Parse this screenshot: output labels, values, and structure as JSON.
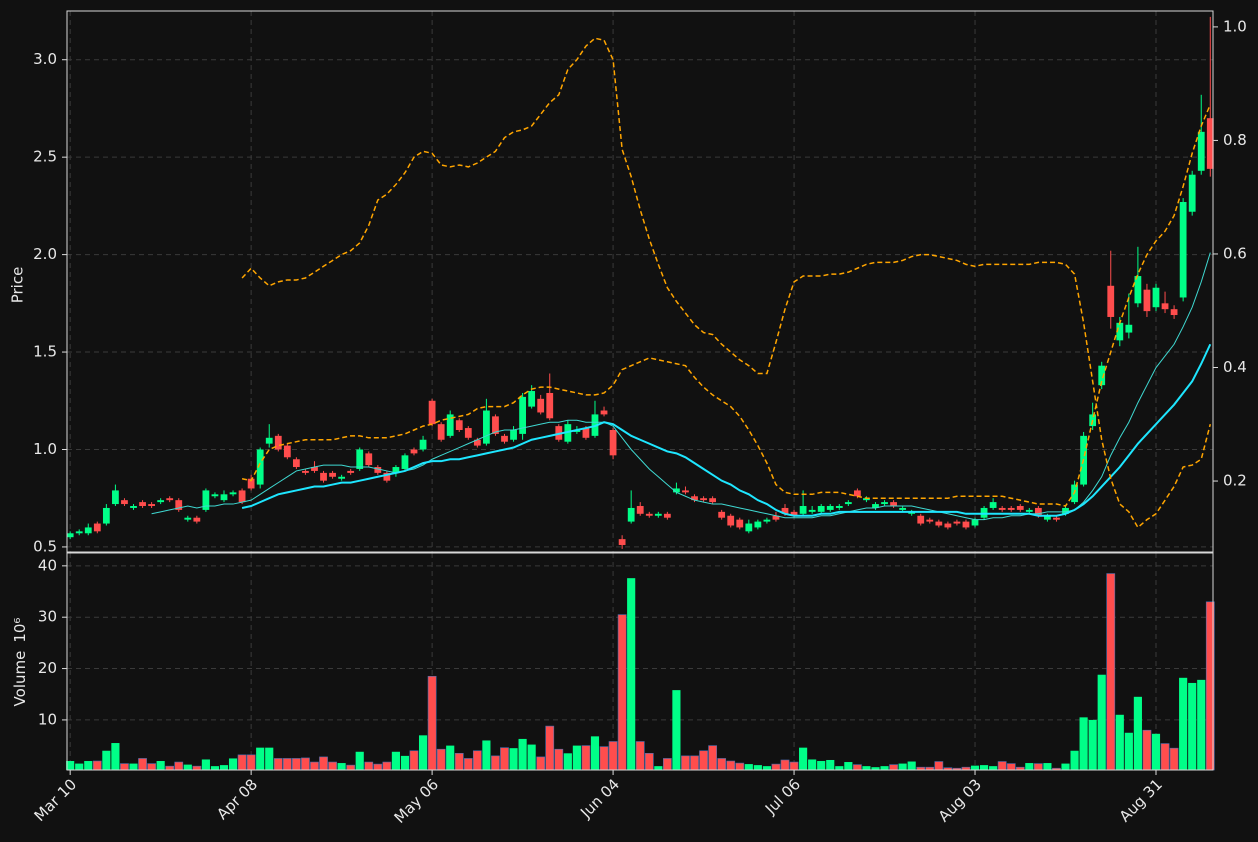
{
  "chart_data": {
    "type": "candlestick",
    "categories": [
      "Mar 10",
      null,
      null,
      null,
      null,
      null,
      null,
      null,
      null,
      null,
      null,
      null,
      null,
      null,
      null,
      null,
      null,
      null,
      null,
      null,
      "Apr 08",
      null,
      null,
      null,
      null,
      null,
      null,
      null,
      null,
      null,
      null,
      null,
      null,
      null,
      null,
      null,
      null,
      null,
      null,
      null,
      "May 06",
      null,
      null,
      null,
      null,
      null,
      null,
      null,
      null,
      null,
      null,
      null,
      null,
      null,
      null,
      null,
      null,
      null,
      null,
      null,
      "Jun 04",
      null,
      null,
      null,
      null,
      null,
      null,
      null,
      null,
      null,
      null,
      null,
      null,
      null,
      null,
      null,
      null,
      null,
      null,
      null,
      "Jul 06",
      null,
      null,
      null,
      null,
      null,
      null,
      null,
      null,
      null,
      null,
      null,
      null,
      null,
      null,
      null,
      null,
      null,
      null,
      null,
      "Aug 03",
      null,
      null,
      null,
      null,
      null,
      null,
      null,
      null,
      null,
      null,
      null,
      null,
      null,
      null,
      null,
      null,
      null,
      null,
      null,
      "Aug 31",
      null,
      null,
      null,
      null,
      null,
      null
    ],
    "open": [
      0.55,
      0.57,
      0.57,
      0.62,
      0.62,
      0.72,
      0.74,
      0.7,
      0.73,
      0.72,
      0.73,
      0.75,
      0.74,
      0.64,
      0.65,
      0.69,
      0.76,
      0.74,
      0.77,
      0.79,
      0.85,
      0.82,
      1.03,
      1.07,
      1.02,
      0.95,
      0.89,
      0.91,
      0.88,
      0.88,
      0.85,
      0.89,
      0.9,
      0.98,
      0.91,
      0.88,
      0.88,
      0.9,
      1.0,
      1.0,
      1.25,
      1.13,
      1.07,
      1.15,
      1.11,
      1.05,
      1.03,
      1.17,
      1.07,
      1.05,
      1.08,
      1.22,
      1.26,
      1.29,
      1.12,
      1.04,
      1.09,
      1.11,
      1.07,
      1.2,
      1.1,
      0.54,
      0.63,
      0.71,
      0.67,
      0.66,
      0.67,
      0.78,
      0.79,
      0.76,
      0.75,
      0.75,
      0.68,
      0.66,
      0.64,
      0.58,
      0.6,
      0.63,
      0.66,
      0.7,
      0.68,
      0.67,
      0.68,
      0.68,
      0.69,
      0.7,
      0.72,
      0.79,
      0.74,
      0.7,
      0.72,
      0.73,
      0.69,
      0.67,
      0.66,
      0.64,
      0.63,
      0.62,
      0.63,
      0.63,
      0.61,
      0.65,
      0.7,
      0.7,
      0.7,
      0.71,
      0.68,
      0.7,
      0.64,
      0.65,
      0.67,
      0.73,
      0.82,
      1.12,
      1.33,
      1.84,
      1.56,
      1.6,
      1.75,
      1.82,
      1.73,
      1.75,
      1.72,
      1.78,
      2.22,
      2.43,
      2.7
    ],
    "high": [
      0.58,
      0.59,
      0.62,
      0.63,
      0.72,
      0.82,
      0.75,
      0.72,
      0.74,
      0.73,
      0.75,
      0.76,
      0.75,
      0.66,
      0.66,
      0.8,
      0.78,
      0.79,
      0.79,
      0.8,
      0.87,
      1.01,
      1.13,
      1.08,
      1.03,
      0.96,
      0.9,
      0.94,
      0.89,
      0.89,
      0.87,
      0.9,
      1.01,
      0.99,
      0.92,
      0.89,
      0.92,
      0.98,
      1.01,
      1.07,
      1.26,
      1.14,
      1.2,
      1.16,
      1.12,
      1.06,
      1.26,
      1.18,
      1.08,
      1.12,
      1.29,
      1.33,
      1.28,
      1.39,
      1.13,
      1.15,
      1.12,
      1.12,
      1.25,
      1.22,
      1.11,
      0.56,
      0.79,
      0.73,
      0.68,
      0.68,
      0.68,
      0.83,
      0.81,
      0.77,
      0.76,
      0.76,
      0.69,
      0.67,
      0.65,
      0.64,
      0.64,
      0.65,
      0.68,
      0.72,
      0.69,
      0.79,
      0.71,
      0.72,
      0.72,
      0.72,
      0.74,
      0.8,
      0.76,
      0.73,
      0.74,
      0.74,
      0.71,
      0.69,
      0.67,
      0.65,
      0.64,
      0.63,
      0.64,
      0.64,
      0.65,
      0.71,
      0.75,
      0.71,
      0.71,
      0.72,
      0.7,
      0.71,
      0.67,
      0.66,
      0.71,
      0.84,
      1.09,
      1.24,
      1.45,
      2.02,
      1.68,
      1.8,
      2.04,
      1.85,
      1.85,
      1.81,
      1.74,
      2.29,
      2.43,
      2.82,
      3.22
    ],
    "low": [
      0.54,
      0.56,
      0.56,
      0.57,
      0.61,
      0.71,
      0.71,
      0.69,
      0.7,
      0.7,
      0.72,
      0.73,
      0.68,
      0.63,
      0.62,
      0.68,
      0.75,
      0.73,
      0.76,
      0.72,
      0.79,
      0.8,
      1.01,
      0.99,
      0.95,
      0.9,
      0.87,
      0.88,
      0.83,
      0.85,
      0.84,
      0.87,
      0.89,
      0.91,
      0.87,
      0.83,
      0.86,
      0.89,
      0.97,
      0.99,
      1.12,
      1.04,
      1.06,
      1.09,
      1.05,
      1.01,
      1.02,
      1.07,
      1.03,
      1.04,
      1.05,
      1.21,
      1.18,
      1.15,
      1.04,
      1.03,
      1.08,
      1.05,
      1.06,
      1.17,
      0.95,
      0.49,
      0.62,
      0.66,
      0.65,
      0.65,
      0.64,
      0.77,
      0.77,
      0.73,
      0.73,
      0.72,
      0.64,
      0.6,
      0.59,
      0.57,
      0.59,
      0.62,
      0.63,
      0.66,
      0.65,
      0.66,
      0.67,
      0.67,
      0.68,
      0.69,
      0.71,
      0.75,
      0.73,
      0.69,
      0.71,
      0.7,
      0.68,
      0.66,
      0.61,
      0.62,
      0.6,
      0.59,
      0.61,
      0.59,
      0.6,
      0.64,
      0.69,
      0.68,
      0.68,
      0.68,
      0.67,
      0.65,
      0.63,
      0.63,
      0.66,
      0.72,
      0.81,
      1.1,
      1.31,
      1.62,
      1.53,
      1.57,
      1.73,
      1.68,
      1.71,
      1.7,
      1.67,
      1.76,
      2.2,
      2.41,
      2.4
    ],
    "close": [
      0.57,
      0.58,
      0.6,
      0.58,
      0.7,
      0.79,
      0.72,
      0.71,
      0.71,
      0.71,
      0.74,
      0.74,
      0.69,
      0.65,
      0.63,
      0.79,
      0.77,
      0.77,
      0.78,
      0.73,
      0.8,
      1.0,
      1.06,
      1.0,
      0.96,
      0.91,
      0.88,
      0.89,
      0.84,
      0.86,
      0.86,
      0.88,
      1.0,
      0.92,
      0.88,
      0.84,
      0.91,
      0.97,
      0.98,
      1.05,
      1.13,
      1.05,
      1.18,
      1.1,
      1.06,
      1.02,
      1.2,
      1.08,
      1.04,
      1.1,
      1.27,
      1.3,
      1.19,
      1.16,
      1.05,
      1.13,
      1.1,
      1.06,
      1.18,
      1.18,
      0.97,
      0.51,
      0.7,
      0.67,
      0.66,
      0.67,
      0.65,
      0.8,
      0.78,
      0.74,
      0.74,
      0.73,
      0.65,
      0.61,
      0.6,
      0.62,
      0.63,
      0.64,
      0.64,
      0.67,
      0.66,
      0.71,
      0.69,
      0.71,
      0.71,
      0.71,
      0.73,
      0.76,
      0.75,
      0.72,
      0.73,
      0.71,
      0.7,
      0.68,
      0.62,
      0.63,
      0.61,
      0.6,
      0.62,
      0.6,
      0.64,
      0.7,
      0.73,
      0.69,
      0.69,
      0.69,
      0.69,
      0.66,
      0.66,
      0.64,
      0.7,
      0.82,
      1.07,
      1.18,
      1.43,
      1.68,
      1.65,
      1.64,
      1.89,
      1.71,
      1.83,
      1.72,
      1.69,
      2.27,
      2.41,
      2.63,
      2.44
    ],
    "up_color": "#00ff88",
    "down_color": "#ff4d4d",
    "lines": [
      {
        "color": "#3fd9d2",
        "width": 1,
        "dashed": false,
        "values": [
          null,
          null,
          null,
          null,
          null,
          null,
          null,
          null,
          null,
          0.67,
          0.68,
          0.69,
          0.7,
          0.71,
          0.7,
          0.71,
          0.71,
          0.72,
          0.72,
          0.73,
          0.74,
          0.77,
          0.8,
          0.83,
          0.86,
          0.89,
          0.9,
          0.91,
          0.92,
          0.92,
          0.92,
          0.91,
          0.91,
          0.91,
          0.9,
          0.89,
          0.88,
          0.89,
          0.9,
          0.92,
          0.95,
          0.97,
          0.99,
          1.01,
          1.03,
          1.05,
          1.07,
          1.09,
          1.1,
          1.1,
          1.11,
          1.12,
          1.13,
          1.14,
          1.14,
          1.15,
          1.15,
          1.14,
          1.14,
          1.14,
          1.12,
          1.06,
          1.0,
          0.95,
          0.9,
          0.86,
          0.82,
          0.78,
          0.76,
          0.74,
          0.73,
          0.72,
          0.72,
          0.71,
          0.7,
          0.69,
          0.68,
          0.67,
          0.66,
          0.65,
          0.65,
          0.65,
          0.65,
          0.66,
          0.66,
          0.67,
          0.68,
          0.69,
          0.7,
          0.7,
          0.71,
          0.71,
          0.71,
          0.71,
          0.7,
          0.69,
          0.68,
          0.67,
          0.66,
          0.65,
          0.64,
          0.64,
          0.65,
          0.65,
          0.66,
          0.66,
          0.67,
          0.67,
          0.68,
          0.68,
          0.68,
          0.69,
          0.73,
          0.79,
          0.86,
          0.97,
          1.06,
          1.14,
          1.24,
          1.33,
          1.42,
          1.48,
          1.54,
          1.63,
          1.73,
          1.86,
          2.01
        ]
      },
      {
        "color": "#1ee6ff",
        "width": 2,
        "dashed": false,
        "values": [
          null,
          null,
          null,
          null,
          null,
          null,
          null,
          null,
          null,
          null,
          null,
          null,
          null,
          null,
          null,
          null,
          null,
          null,
          null,
          0.7,
          0.71,
          0.73,
          0.75,
          0.77,
          0.78,
          0.79,
          0.8,
          0.81,
          0.81,
          0.82,
          0.83,
          0.83,
          0.84,
          0.85,
          0.86,
          0.87,
          0.88,
          0.89,
          0.91,
          0.93,
          0.94,
          0.94,
          0.95,
          0.95,
          0.96,
          0.97,
          0.98,
          0.99,
          1.0,
          1.01,
          1.03,
          1.05,
          1.06,
          1.07,
          1.08,
          1.09,
          1.1,
          1.11,
          1.12,
          1.14,
          1.13,
          1.1,
          1.07,
          1.05,
          1.03,
          1.01,
          0.99,
          0.98,
          0.96,
          0.93,
          0.9,
          0.87,
          0.84,
          0.82,
          0.79,
          0.77,
          0.74,
          0.72,
          0.69,
          0.67,
          0.66,
          0.66,
          0.66,
          0.67,
          0.67,
          0.68,
          0.68,
          0.68,
          0.68,
          0.68,
          0.68,
          0.68,
          0.68,
          0.68,
          0.68,
          0.68,
          0.68,
          0.68,
          0.68,
          0.67,
          0.67,
          0.67,
          0.67,
          0.67,
          0.67,
          0.67,
          0.67,
          0.66,
          0.66,
          0.66,
          0.67,
          0.69,
          0.72,
          0.76,
          0.81,
          0.86,
          0.91,
          0.97,
          1.03,
          1.08,
          1.13,
          1.18,
          1.23,
          1.29,
          1.35,
          1.44,
          1.54
        ]
      },
      {
        "color": "#ffa500",
        "width": 1.5,
        "dashed": true,
        "values": [
          null,
          null,
          null,
          null,
          null,
          null,
          null,
          null,
          null,
          null,
          null,
          null,
          null,
          null,
          null,
          null,
          null,
          null,
          null,
          1.88,
          1.93,
          1.88,
          1.84,
          1.86,
          1.87,
          1.87,
          1.88,
          1.91,
          1.94,
          1.97,
          2.0,
          2.02,
          2.06,
          2.15,
          2.28,
          2.31,
          2.36,
          2.42,
          2.5,
          2.53,
          2.52,
          2.46,
          2.45,
          2.46,
          2.45,
          2.47,
          2.5,
          2.53,
          2.6,
          2.63,
          2.64,
          2.66,
          2.72,
          2.78,
          2.82,
          2.95,
          3.0,
          3.07,
          3.11,
          3.1,
          3.0,
          2.54,
          2.4,
          2.23,
          2.08,
          1.95,
          1.83,
          1.76,
          1.7,
          1.64,
          1.6,
          1.59,
          1.54,
          1.5,
          1.46,
          1.43,
          1.39,
          1.39,
          1.55,
          1.72,
          1.86,
          1.89,
          1.89,
          1.89,
          1.9,
          1.9,
          1.91,
          1.93,
          1.95,
          1.96,
          1.96,
          1.96,
          1.97,
          1.99,
          2.0,
          2.0,
          1.99,
          1.98,
          1.97,
          1.95,
          1.94,
          1.95,
          1.95,
          1.95,
          1.95,
          1.95,
          1.95,
          1.96,
          1.96,
          1.96,
          1.95,
          1.9,
          1.65,
          1.35,
          1.05,
          0.85,
          0.72,
          0.68,
          0.6,
          0.64,
          0.67,
          0.74,
          0.81,
          0.91,
          0.92,
          0.95,
          1.13
        ]
      },
      {
        "color": "#ffa500",
        "width": 1.5,
        "dashed": true,
        "values": [
          null,
          null,
          null,
          null,
          null,
          null,
          null,
          null,
          null,
          null,
          null,
          null,
          null,
          null,
          null,
          null,
          null,
          null,
          null,
          0.85,
          0.84,
          0.93,
          1.0,
          1.02,
          1.03,
          1.04,
          1.05,
          1.05,
          1.05,
          1.05,
          1.06,
          1.07,
          1.07,
          1.06,
          1.06,
          1.06,
          1.07,
          1.08,
          1.1,
          1.12,
          1.13,
          1.15,
          1.16,
          1.17,
          1.18,
          1.21,
          1.22,
          1.22,
          1.22,
          1.24,
          1.28,
          1.31,
          1.32,
          1.32,
          1.31,
          1.3,
          1.29,
          1.28,
          1.28,
          1.29,
          1.33,
          1.41,
          1.43,
          1.45,
          1.47,
          1.46,
          1.45,
          1.44,
          1.43,
          1.37,
          1.32,
          1.28,
          1.25,
          1.22,
          1.17,
          1.1,
          1.02,
          0.93,
          0.82,
          0.78,
          0.77,
          0.77,
          0.77,
          0.78,
          0.78,
          0.78,
          0.77,
          0.76,
          0.75,
          0.75,
          0.75,
          0.75,
          0.75,
          0.75,
          0.75,
          0.75,
          0.75,
          0.75,
          0.76,
          0.76,
          0.76,
          0.76,
          0.76,
          0.76,
          0.75,
          0.74,
          0.73,
          0.72,
          0.72,
          0.72,
          0.71,
          0.78,
          0.95,
          1.15,
          1.35,
          1.5,
          1.65,
          1.78,
          1.9,
          2.0,
          2.07,
          2.12,
          2.2,
          2.35,
          2.52,
          2.66,
          2.77
        ]
      }
    ],
    "ylabel": "Price",
    "ylim": [
      0.474,
      3.25
    ],
    "yticks": [
      0.5,
      {
        "value": 1.0,
        "label": "1.0"
      },
      1.5,
      {
        "value": 2.0,
        "label": "2.0"
      },
      2.5,
      {
        "value": 3.0,
        "label": "3.0"
      }
    ],
    "y2lim": [
      0.075,
      1.028
    ],
    "y2ticks": [
      0.2,
      0.4,
      0.6,
      0.8,
      {
        "value": 1.0,
        "label": "1.0"
      }
    ],
    "grid": true,
    "volume": {
      "ylabel": "Volume",
      "exponent": "10⁶",
      "ylim": [
        0.25,
        42.5
      ],
      "yticks": [
        10,
        20,
        30,
        40
      ],
      "values": [
        2,
        1.5,
        2,
        2,
        4,
        5.5,
        1.5,
        1.5,
        2.5,
        1.5,
        2,
        1,
        1.8,
        1.3,
        1,
        2.3,
        1,
        1.2,
        2.5,
        3.2,
        3.2,
        4.6,
        4.6,
        2.5,
        2.5,
        2.5,
        2.6,
        1.8,
        2.8,
        1.8,
        1.6,
        1.2,
        3.8,
        1.8,
        1.4,
        1.8,
        3.8,
        3,
        4,
        7,
        18.5,
        4.3,
        5,
        3.5,
        2.5,
        4,
        6,
        3,
        4.6,
        4.5,
        6.3,
        5.2,
        2.8,
        8.8,
        4.3,
        3.5,
        5,
        5,
        6.8,
        4.8,
        5.8,
        30.5,
        37.6,
        5.8,
        3.5,
        1,
        2.5,
        15.8,
        3,
        3,
        4,
        5,
        2.5,
        2,
        1.6,
        1.4,
        1.2,
        1,
        1.4,
        2.2,
        1.8,
        4.6,
        2.3,
        2,
        2.2,
        1,
        1.8,
        1.3,
        1,
        0.8,
        1,
        1.3,
        1.5,
        1.9,
        0.8,
        0.8,
        1.9,
        0.7,
        0.6,
        0.8,
        1.1,
        1.2,
        1,
        1.9,
        1.5,
        0.8,
        1.6,
        1.5,
        1.6,
        0.6,
        1.5,
        4,
        10.5,
        10,
        18.8,
        38.5,
        11,
        7.5,
        14.5,
        8,
        7.3,
        5.4,
        4.5,
        18.2,
        17.2,
        17.8,
        33
      ]
    }
  }
}
